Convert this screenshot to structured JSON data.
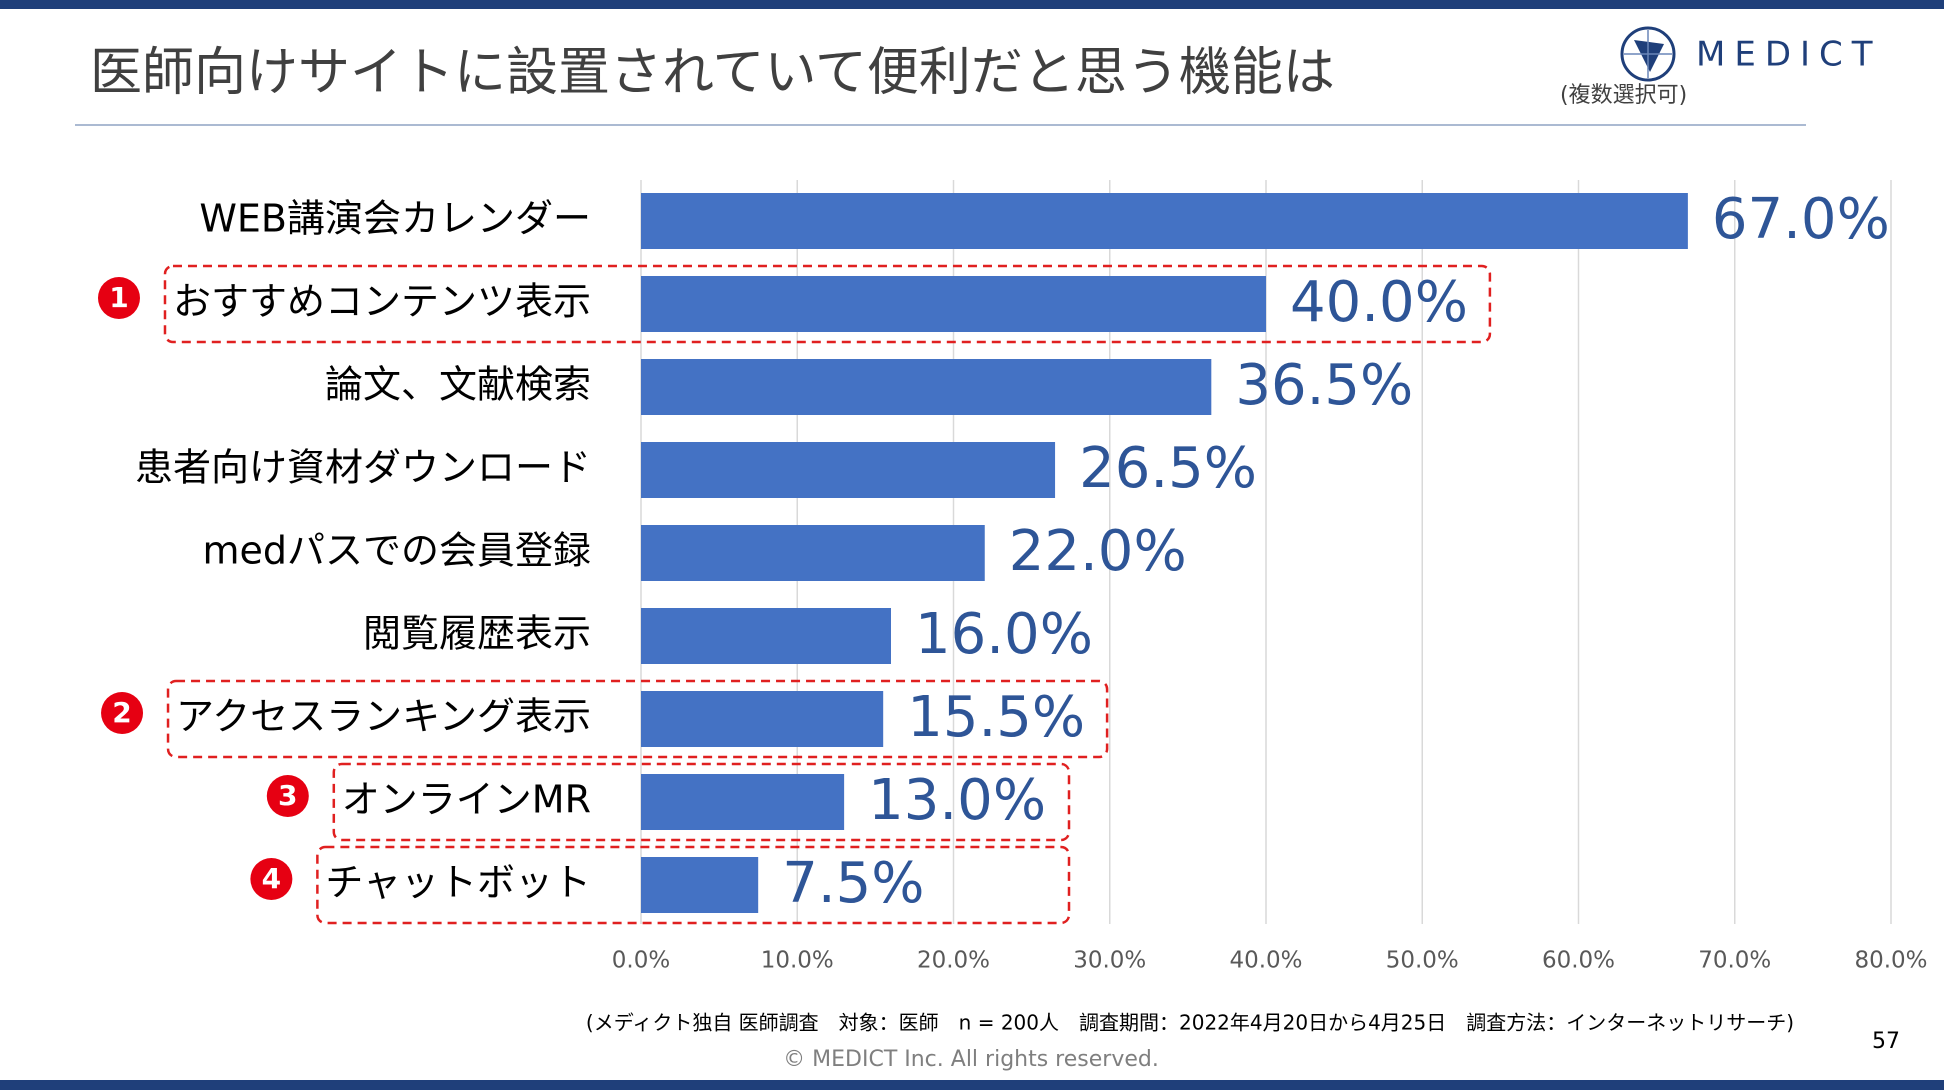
{
  "chart_data": {
    "type": "hbar",
    "title": "医師向けサイトに設置されていて便利だと思う機能は",
    "subtitle": "(複数選択可)",
    "categories": [
      "WEB講演会カレンダー",
      "おすすめコンテンツ表示",
      "論文、文献検索",
      "患者向け資材ダウンロード",
      "medパスでの会員登録",
      "閲覧履歴表示",
      "アクセスランキング表示",
      "オンラインMR",
      "チャットボット"
    ],
    "values": [
      67.0,
      40.0,
      36.5,
      26.5,
      22.0,
      16.0,
      15.5,
      13.0,
      7.5
    ],
    "value_labels": [
      "67.0%",
      "40.0%",
      "36.5%",
      "26.5%",
      "22.0%",
      "16.0%",
      "15.5%",
      "13.0%",
      "7.5%"
    ],
    "markers": [
      null,
      "1",
      null,
      null,
      null,
      null,
      "2",
      "3",
      "4"
    ],
    "color": "#4472c4",
    "xlim": [
      0,
      80
    ],
    "xticks": [
      {
        "value": 0,
        "label": "0.0%"
      },
      {
        "value": 10,
        "label": "10.0%"
      },
      {
        "value": 20,
        "label": "20.0%"
      },
      {
        "value": 30,
        "label": "30.0%"
      },
      {
        "value": 40,
        "label": "40.0%"
      },
      {
        "value": 50,
        "label": "50.0%"
      },
      {
        "value": 60,
        "label": "60.0%"
      },
      {
        "value": 70,
        "label": "70.0%"
      },
      {
        "value": 80,
        "label": "80.0%"
      }
    ],
    "grid": true
  },
  "logo": "MEDICT",
  "footnote": "(メディクト独自 医師調査　対象：医師　n = 200人　調査期間：2022年4月20日から4月25日　調査方法：インターネットリサーチ)",
  "copyright": "© MEDICT Inc.  All rights reserved.",
  "page_number": "57"
}
